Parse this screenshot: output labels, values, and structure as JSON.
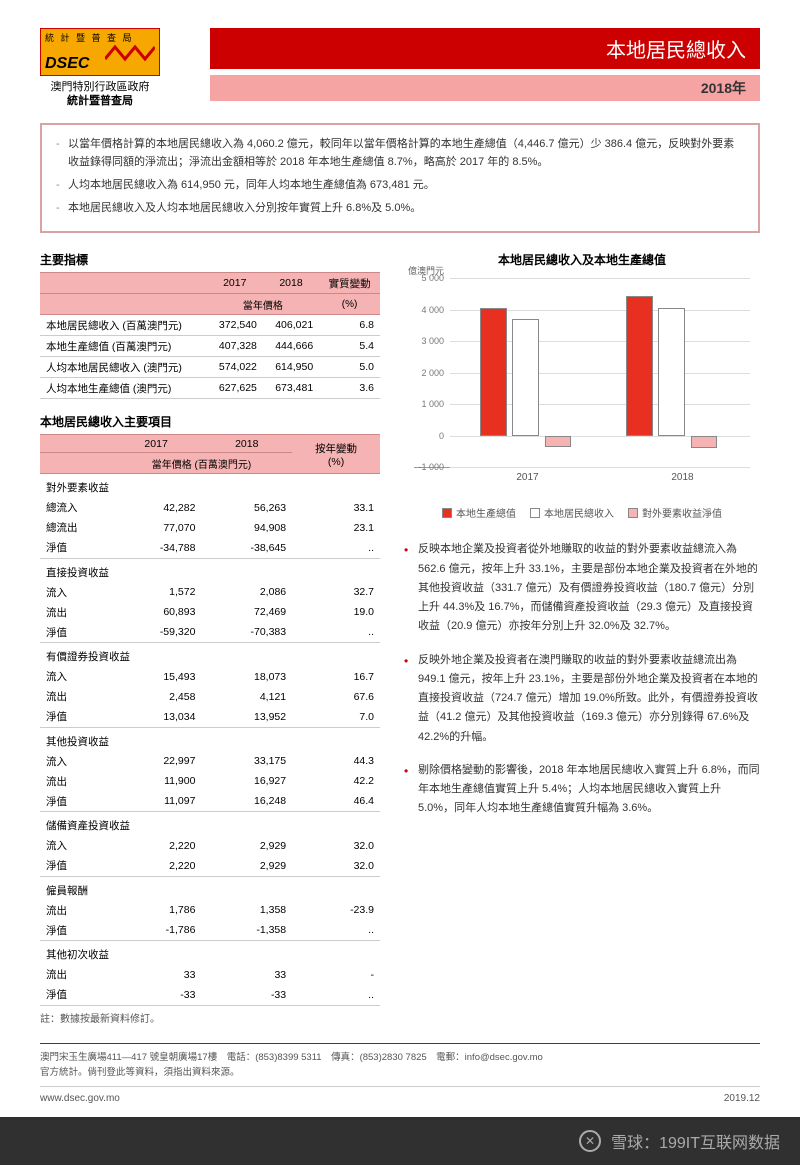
{
  "logo": {
    "top": "統 計 暨 普 查 局",
    "name": "DSEC",
    "sub1": "澳門特別行政區政府",
    "sub2": "統計暨普查局"
  },
  "header": {
    "title": "本地居民總收入",
    "year": "2018年"
  },
  "summary": [
    "以當年價格計算的本地居民總收入為 4,060.2 億元，較同年以當年價格計算的本地生產總值（4,446.7 億元）少 386.4 億元，反映對外要素收益錄得同額的淨流出；淨流出金額相等於 2018 年本地生產總值 8.7%，略高於 2017 年的 8.5%。",
    "人均本地居民總收入為 614,950 元，同年人均本地生產總值為 673,481 元。",
    "本地居民總收入及人均本地居民總收入分別按年實質上升 6.8%及 5.0%。"
  ],
  "table1": {
    "title": "主要指標",
    "h1": "2017",
    "h2": "2018",
    "h3": "實質變動",
    "h4": "當年價格",
    "h5": "(%)",
    "rows": [
      {
        "l": "本地居民總收入 (百萬澳門元)",
        "a": "372,540",
        "b": "406,021",
        "c": "6.8"
      },
      {
        "l": "本地生產總值 (百萬澳門元)",
        "a": "407,328",
        "b": "444,666",
        "c": "5.4"
      },
      {
        "l": "人均本地居民總收入 (澳門元)",
        "a": "574,022",
        "b": "614,950",
        "c": "5.0"
      },
      {
        "l": "人均本地生產總值 (澳門元)",
        "a": "627,625",
        "b": "673,481",
        "c": "3.6"
      }
    ]
  },
  "table2": {
    "title": "本地居民總收入主要項目",
    "h1": "2017",
    "h2": "2018",
    "h3": "按年變動",
    "h4": "當年價格 (百萬澳門元)",
    "h5": "(%)",
    "groups": [
      {
        "name": "對外要素收益",
        "rows": [
          {
            "l": "總流入",
            "a": "42,282",
            "b": "56,263",
            "c": "33.1"
          },
          {
            "l": "總流出",
            "a": "77,070",
            "b": "94,908",
            "c": "23.1"
          },
          {
            "l": "淨值",
            "a": "-34,788",
            "b": "-38,645",
            "c": ".."
          }
        ]
      },
      {
        "name": "直接投資收益",
        "rows": [
          {
            "l": "流入",
            "a": "1,572",
            "b": "2,086",
            "c": "32.7"
          },
          {
            "l": "流出",
            "a": "60,893",
            "b": "72,469",
            "c": "19.0"
          },
          {
            "l": "淨值",
            "a": "-59,320",
            "b": "-70,383",
            "c": ".."
          }
        ]
      },
      {
        "name": "有價證券投資收益",
        "rows": [
          {
            "l": "流入",
            "a": "15,493",
            "b": "18,073",
            "c": "16.7"
          },
          {
            "l": "流出",
            "a": "2,458",
            "b": "4,121",
            "c": "67.6"
          },
          {
            "l": "淨值",
            "a": "13,034",
            "b": "13,952",
            "c": "7.0"
          }
        ]
      },
      {
        "name": "其他投資收益",
        "rows": [
          {
            "l": "流入",
            "a": "22,997",
            "b": "33,175",
            "c": "44.3"
          },
          {
            "l": "流出",
            "a": "11,900",
            "b": "16,927",
            "c": "42.2"
          },
          {
            "l": "淨值",
            "a": "11,097",
            "b": "16,248",
            "c": "46.4"
          }
        ]
      },
      {
        "name": "儲備資產投資收益",
        "rows": [
          {
            "l": "流入",
            "a": "2,220",
            "b": "2,929",
            "c": "32.0"
          },
          {
            "l": "淨值",
            "a": "2,220",
            "b": "2,929",
            "c": "32.0"
          }
        ]
      },
      {
        "name": "僱員報酬",
        "rows": [
          {
            "l": "流出",
            "a": "1,786",
            "b": "1,358",
            "c": "-23.9"
          },
          {
            "l": "淨值",
            "a": "-1,786",
            "b": "-1,358",
            "c": ".."
          }
        ]
      },
      {
        "name": "其他初次收益",
        "rows": [
          {
            "l": "流出",
            "a": "33",
            "b": "33",
            "c": "-"
          },
          {
            "l": "淨值",
            "a": "-33",
            "b": "-33",
            "c": ".."
          }
        ]
      }
    ],
    "note": "註：數據按最新資料修訂。"
  },
  "chart": {
    "title": "本地居民總收入及本地生產總值",
    "ylabel": "億澳門元",
    "ymin": -1000,
    "ymax": 5000,
    "ystep": 1000,
    "categories": [
      "2017",
      "2018"
    ],
    "series": [
      {
        "name": "本地生產總值",
        "color": "#e83020",
        "vals": [
          4073,
          4447
        ]
      },
      {
        "name": "本地居民總收入",
        "color": "#ffffff",
        "vals": [
          3725,
          4060
        ]
      },
      {
        "name": "對外要素收益淨值",
        "color": "#f5b3b3",
        "vals": [
          -348,
          -386
        ]
      }
    ]
  },
  "bullets": [
    "反映本地企業及投資者從外地賺取的收益的對外要素收益總流入為 562.6 億元，按年上升 33.1%，主要是部份本地企業及投資者在外地的其他投資收益（331.7 億元）及有價證券投資收益（180.7 億元）分別上升 44.3%及 16.7%，而儲備資產投資收益（29.3 億元）及直接投資收益（20.9 億元）亦按年分別上升 32.0%及 32.7%。",
    "反映外地企業及投資者在澳門賺取的收益的對外要素收益總流出為 949.1 億元，按年上升 23.1%，主要是部份外地企業及投資者在本地的直接投資收益（724.7 億元）增加 19.0%所致。此外，有價證券投資收益（41.2 億元）及其他投資收益（169.3 億元）亦分別錄得 67.6%及 42.2%的升幅。",
    "剔除價格變動的影響後，2018 年本地居民總收入實質上升 6.8%，而同年本地生產總值實質上升 5.4%；人均本地居民總收入實質上升 5.0%，同年人均本地生產總值實質升幅為 3.6%。"
  ],
  "footer": {
    "addr": "澳門宋玉生廣場411—417 號皇朝廣場17樓　電話：(853)8399 5311　傳真：(853)2830 7825　電郵：info@dsec.gov.mo",
    "note": "官方統計。倘刊登此等資料，須指出資料來源。",
    "url": "www.dsec.gov.mo",
    "date": "2019.12"
  },
  "watermark": "雪球：199IT互联网数据"
}
